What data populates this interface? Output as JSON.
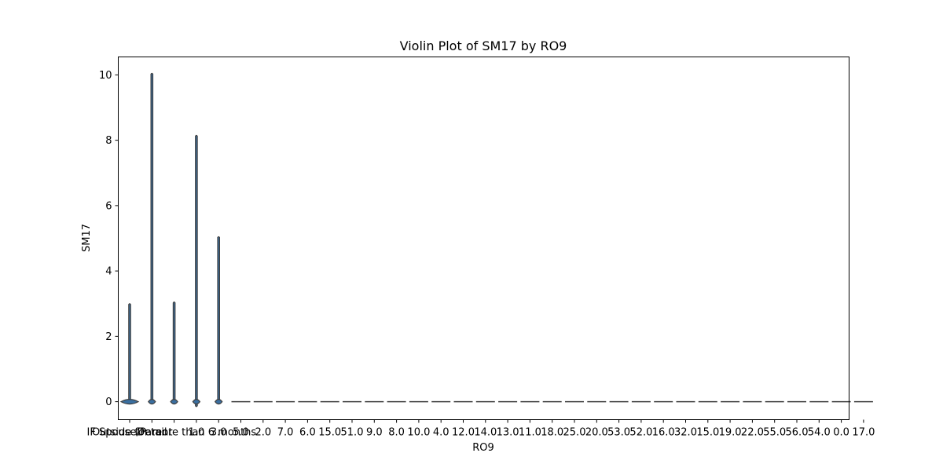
{
  "chart_data": {
    "type": "violin",
    "title": "Violin Plot of SM17 by RO9",
    "xlabel": "RO9",
    "ylabel": "SM17",
    "ylim": [
      -0.55,
      10.55
    ],
    "yticks": [
      0,
      2,
      4,
      6,
      8,
      10
    ],
    "grid": false,
    "categories": [
      "IF Spouse/Parent",
      "Detail",
      "Outside for more than 6 months",
      "1.0",
      "3.0",
      "5.0",
      "2.0",
      "7.0",
      "6.0",
      "15.0",
      "51.0",
      "9.0",
      "8.0",
      "10.0",
      "4.0",
      "12.0",
      "14.0",
      "13.0",
      "11.0",
      "18.0",
      "25.0",
      "20.0",
      "53.0",
      "52.0",
      "16.0",
      "32.0",
      "15.0",
      "19.0",
      "22.0",
      "55.0",
      "56.0",
      "54.0",
      "0.0",
      "17.0"
    ],
    "visible_tick_labels": [
      "IF Spouse/Parent",
      "Detail",
      "Outside for more than 6 months",
      "1.0",
      "3.0",
      "5.0",
      "2.0",
      "7.0",
      "6.0",
      "15.0",
      "51.0",
      "9.0",
      "8.0",
      "10.0",
      "4.0",
      "12.0",
      "14.0",
      "13.0",
      "11.0",
      "18.0",
      "25.0",
      "20.0",
      "53.0",
      "52.0",
      "16.0",
      "32.0",
      "15.0",
      "19.0",
      "22.0",
      "55.0",
      "56.0",
      "54.0",
      "0.0",
      "17.0"
    ],
    "violins": [
      {
        "min": 0,
        "max": 3,
        "center": 0
      },
      {
        "min": 0,
        "max": 10.05,
        "center": 0
      },
      {
        "min": 0,
        "max": 3.05,
        "center": 0
      },
      {
        "min": -0.15,
        "max": 8.15,
        "center": 0
      },
      {
        "min": 0,
        "max": 5.05,
        "center": 0
      },
      {
        "min": 0,
        "max": 0,
        "center": 0
      },
      {
        "min": 0,
        "max": 0,
        "center": 0
      },
      {
        "min": 0,
        "max": 0,
        "center": 0
      },
      {
        "min": 0,
        "max": 0,
        "center": 0
      },
      {
        "min": 0,
        "max": 0,
        "center": 0
      },
      {
        "min": 0,
        "max": 0,
        "center": 0
      },
      {
        "min": 0,
        "max": 0,
        "center": 0
      },
      {
        "min": 0,
        "max": 0,
        "center": 0
      },
      {
        "min": 0,
        "max": 0,
        "center": 0
      },
      {
        "min": 0,
        "max": 0,
        "center": 0
      },
      {
        "min": 0,
        "max": 0,
        "center": 0
      },
      {
        "min": 0,
        "max": 0,
        "center": 0
      },
      {
        "min": 0,
        "max": 0,
        "center": 0
      },
      {
        "min": 0,
        "max": 0,
        "center": 0
      },
      {
        "min": 0,
        "max": 0,
        "center": 0
      },
      {
        "min": 0,
        "max": 0,
        "center": 0
      },
      {
        "min": 0,
        "max": 0,
        "center": 0
      },
      {
        "min": 0,
        "max": 0,
        "center": 0
      },
      {
        "min": 0,
        "max": 0,
        "center": 0
      },
      {
        "min": 0,
        "max": 0,
        "center": 0
      },
      {
        "min": 0,
        "max": 0,
        "center": 0
      },
      {
        "min": 0,
        "max": 0,
        "center": 0
      },
      {
        "min": 0,
        "max": 0,
        "center": 0
      },
      {
        "min": 0,
        "max": 0,
        "center": 0
      },
      {
        "min": 0,
        "max": 0,
        "center": 0
      },
      {
        "min": 0,
        "max": 0,
        "center": 0
      },
      {
        "min": 0,
        "max": 0,
        "center": 0
      },
      {
        "min": 0,
        "max": 0,
        "center": 0
      },
      {
        "min": 0,
        "max": 0,
        "center": 0
      }
    ],
    "colors": {
      "violin_fill": "#3a6fa0",
      "violin_edge": "#3f3f3f",
      "axes": "#000000",
      "background": "#ffffff"
    }
  }
}
